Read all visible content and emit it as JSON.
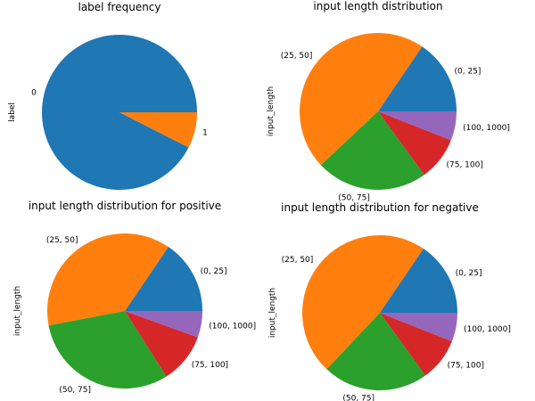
{
  "chart_data": [
    {
      "type": "pie",
      "title": "label frequency",
      "ylabel": "label",
      "categories": [
        "0",
        "1"
      ],
      "values": [
        92.5,
        7.5
      ],
      "colors": [
        "#1f77b4",
        "#ff7f0e"
      ]
    },
    {
      "type": "pie",
      "title": "input length distribution",
      "ylabel": "input_length",
      "categories": [
        "(0, 25]",
        "(25, 50]",
        "(50, 75]",
        "(75, 100]",
        "(100, 1000]"
      ],
      "values": [
        15.5,
        46.5,
        23,
        9,
        6
      ],
      "colors": [
        "#1f77b4",
        "#ff7f0e",
        "#2ca02c",
        "#d62728",
        "#9467bd"
      ]
    },
    {
      "type": "pie",
      "title": "input length distribution for positive",
      "ylabel": "input_length",
      "categories": [
        "(0, 25]",
        "(25, 50]",
        "(50, 75]",
        "(75, 100]",
        "(100, 1000]"
      ],
      "values": [
        15.5,
        37.5,
        31,
        10.5,
        5.5
      ],
      "colors": [
        "#1f77b4",
        "#ff7f0e",
        "#2ca02c",
        "#d62728",
        "#9467bd"
      ]
    },
    {
      "type": "pie",
      "title": "input length distribution for negative",
      "ylabel": "input_length",
      "categories": [
        "(0, 25]",
        "(25, 50]",
        "(50, 75]",
        "(75, 100]",
        "(100, 1000]"
      ],
      "values": [
        15.5,
        47.5,
        22,
        9,
        6
      ],
      "colors": [
        "#1f77b4",
        "#ff7f0e",
        "#2ca02c",
        "#d62728",
        "#9467bd"
      ]
    }
  ]
}
